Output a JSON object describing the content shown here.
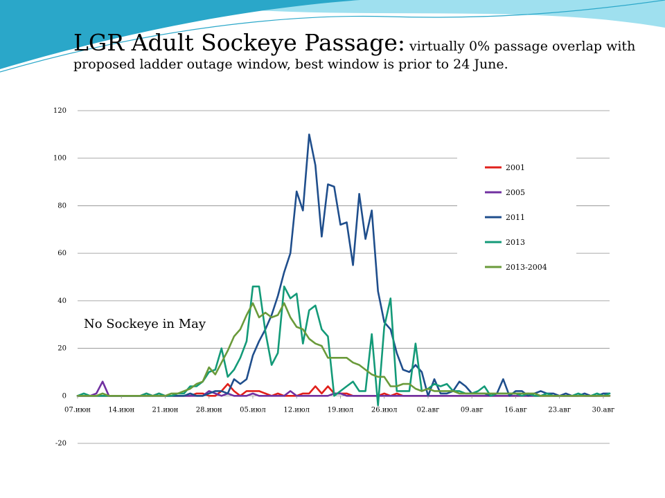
{
  "title": {
    "main": "LGR Adult Sockeye Passage:",
    "sub": " virtually 0% passage overlap with proposed ladder outage window, best window is prior to 24 June."
  },
  "colors": {
    "deco_dark": "#2aa7c9",
    "deco_light": "#9fe0ef",
    "grid": "#8c8c8c"
  },
  "chart_data": {
    "type": "line",
    "xlabel": "",
    "ylabel": "",
    "ylim": [
      -20,
      120
    ],
    "y_ticks": [
      -20,
      0,
      20,
      40,
      60,
      80,
      100,
      120
    ],
    "x_start_index": 0,
    "x_end_index": 85,
    "x_tick_labels": [
      "07.июн",
      "14.июн",
      "21.июн",
      "28.июн",
      "05.июл",
      "12.июл",
      "19.июл",
      "26.июл",
      "02.авг",
      "09.авг",
      "16.авг",
      "23.авг",
      "30.авг"
    ],
    "x_tick_step": 7,
    "grid": true,
    "legend_position": "right",
    "annotation": "No Sockeye in May",
    "series": [
      {
        "name": "2001",
        "color": "#e0201b",
        "points": [
          [
            0,
            0
          ],
          [
            5,
            0
          ],
          [
            10,
            0
          ],
          [
            11,
            1
          ],
          [
            12,
            0
          ],
          [
            13,
            1
          ],
          [
            14,
            0
          ],
          [
            18,
            0
          ],
          [
            19,
            1
          ],
          [
            20,
            1
          ],
          [
            21,
            0
          ],
          [
            22,
            0
          ],
          [
            23,
            2
          ],
          [
            24,
            5
          ],
          [
            25,
            2
          ],
          [
            26,
            0
          ],
          [
            27,
            2
          ],
          [
            28,
            2
          ],
          [
            29,
            2
          ],
          [
            30,
            1
          ],
          [
            31,
            0
          ],
          [
            32,
            1
          ],
          [
            33,
            0
          ],
          [
            34,
            0
          ],
          [
            35,
            0
          ],
          [
            36,
            1
          ],
          [
            37,
            1
          ],
          [
            38,
            4
          ],
          [
            39,
            1
          ],
          [
            40,
            4
          ],
          [
            41,
            1
          ],
          [
            42,
            1
          ],
          [
            43,
            1
          ],
          [
            44,
            0
          ],
          [
            48,
            0
          ],
          [
            49,
            1
          ],
          [
            50,
            0
          ],
          [
            51,
            1
          ],
          [
            52,
            0
          ],
          [
            60,
            0
          ],
          [
            85,
            0
          ]
        ]
      },
      {
        "name": "2005",
        "color": "#7030a0",
        "points": [
          [
            0,
            0
          ],
          [
            2,
            0
          ],
          [
            3,
            1
          ],
          [
            4,
            6
          ],
          [
            5,
            0
          ],
          [
            20,
            0
          ],
          [
            21,
            2
          ],
          [
            22,
            1
          ],
          [
            23,
            0
          ],
          [
            24,
            1
          ],
          [
            25,
            0
          ],
          [
            26,
            0
          ],
          [
            27,
            0
          ],
          [
            28,
            1
          ],
          [
            29,
            0
          ],
          [
            33,
            0
          ],
          [
            34,
            2
          ],
          [
            35,
            0
          ],
          [
            40,
            0
          ],
          [
            41,
            1
          ],
          [
            42,
            1
          ],
          [
            43,
            0
          ],
          [
            85,
            0
          ]
        ]
      },
      {
        "name": "2011",
        "color": "#1f4e8c",
        "points": [
          [
            0,
            0
          ],
          [
            5,
            0
          ],
          [
            10,
            0
          ],
          [
            17,
            0
          ],
          [
            18,
            1
          ],
          [
            19,
            0
          ],
          [
            20,
            0
          ],
          [
            21,
            1
          ],
          [
            22,
            2
          ],
          [
            23,
            2
          ],
          [
            24,
            1
          ],
          [
            25,
            7
          ],
          [
            26,
            5
          ],
          [
            27,
            7
          ],
          [
            28,
            17
          ],
          [
            29,
            23
          ],
          [
            30,
            28
          ],
          [
            31,
            34
          ],
          [
            32,
            42
          ],
          [
            33,
            52
          ],
          [
            34,
            60
          ],
          [
            35,
            86
          ],
          [
            36,
            78
          ],
          [
            37,
            110
          ],
          [
            38,
            97
          ],
          [
            39,
            67
          ],
          [
            40,
            89
          ],
          [
            41,
            88
          ],
          [
            42,
            72
          ],
          [
            43,
            73
          ],
          [
            44,
            55
          ],
          [
            45,
            85
          ],
          [
            46,
            66
          ],
          [
            47,
            78
          ],
          [
            48,
            44
          ],
          [
            49,
            31
          ],
          [
            50,
            28
          ],
          [
            51,
            18
          ],
          [
            52,
            11
          ],
          [
            53,
            10
          ],
          [
            54,
            13
          ],
          [
            55,
            10
          ],
          [
            56,
            0
          ],
          [
            57,
            7
          ],
          [
            58,
            1
          ],
          [
            59,
            1
          ],
          [
            60,
            2
          ],
          [
            61,
            6
          ],
          [
            62,
            4
          ],
          [
            63,
            1
          ],
          [
            64,
            1
          ],
          [
            65,
            1
          ],
          [
            66,
            0
          ],
          [
            67,
            1
          ],
          [
            68,
            7
          ],
          [
            69,
            0
          ],
          [
            70,
            2
          ],
          [
            71,
            2
          ],
          [
            72,
            0
          ],
          [
            73,
            1
          ],
          [
            74,
            2
          ],
          [
            75,
            1
          ],
          [
            76,
            1
          ],
          [
            77,
            0
          ],
          [
            78,
            1
          ],
          [
            79,
            0
          ],
          [
            80,
            0
          ],
          [
            81,
            1
          ],
          [
            82,
            0
          ],
          [
            83,
            0
          ],
          [
            84,
            1
          ],
          [
            85,
            1
          ]
        ]
      },
      {
        "name": "2013",
        "color": "#139a78",
        "points": [
          [
            0,
            0
          ],
          [
            1,
            1
          ],
          [
            2,
            0
          ],
          [
            3,
            0
          ],
          [
            10,
            0
          ],
          [
            11,
            1
          ],
          [
            12,
            0
          ],
          [
            13,
            1
          ],
          [
            14,
            0
          ],
          [
            15,
            0
          ],
          [
            16,
            1
          ],
          [
            17,
            1
          ],
          [
            18,
            4
          ],
          [
            19,
            4
          ],
          [
            20,
            6
          ],
          [
            21,
            10
          ],
          [
            22,
            11
          ],
          [
            23,
            20
          ],
          [
            24,
            8
          ],
          [
            25,
            11
          ],
          [
            26,
            16
          ],
          [
            27,
            23
          ],
          [
            28,
            46
          ],
          [
            29,
            46
          ],
          [
            30,
            27
          ],
          [
            31,
            13
          ],
          [
            32,
            18
          ],
          [
            33,
            46
          ],
          [
            34,
            41
          ],
          [
            35,
            43
          ],
          [
            36,
            22
          ],
          [
            37,
            36
          ],
          [
            38,
            38
          ],
          [
            39,
            28
          ],
          [
            40,
            25
          ],
          [
            41,
            0
          ],
          [
            42,
            2
          ],
          [
            43,
            4
          ],
          [
            44,
            6
          ],
          [
            45,
            2
          ],
          [
            46,
            2
          ],
          [
            47,
            26
          ],
          [
            48,
            -4
          ],
          [
            49,
            29
          ],
          [
            50,
            41
          ],
          [
            51,
            2
          ],
          [
            52,
            2
          ],
          [
            53,
            2
          ],
          [
            54,
            22
          ],
          [
            55,
            2
          ],
          [
            56,
            3
          ],
          [
            57,
            5
          ],
          [
            58,
            4
          ],
          [
            59,
            5
          ],
          [
            60,
            2
          ],
          [
            61,
            2
          ],
          [
            62,
            1
          ],
          [
            63,
            1
          ],
          [
            64,
            2
          ],
          [
            65,
            4
          ],
          [
            66,
            0
          ],
          [
            67,
            1
          ],
          [
            68,
            1
          ],
          [
            69,
            1
          ],
          [
            70,
            1
          ],
          [
            71,
            0
          ],
          [
            72,
            1
          ],
          [
            73,
            0
          ],
          [
            74,
            0
          ],
          [
            75,
            1
          ],
          [
            76,
            0
          ],
          [
            77,
            0
          ],
          [
            78,
            0
          ],
          [
            79,
            0
          ],
          [
            80,
            1
          ],
          [
            81,
            0
          ],
          [
            82,
            0
          ],
          [
            83,
            1
          ],
          [
            84,
            0
          ],
          [
            85,
            1
          ]
        ]
      },
      {
        "name": "2013-2004",
        "color": "#6a9a3a",
        "points": [
          [
            0,
            0
          ],
          [
            3,
            0
          ],
          [
            4,
            1
          ],
          [
            5,
            0
          ],
          [
            10,
            0
          ],
          [
            11,
            0
          ],
          [
            12,
            0
          ],
          [
            13,
            0
          ],
          [
            14,
            0
          ],
          [
            15,
            1
          ],
          [
            16,
            1
          ],
          [
            17,
            2
          ],
          [
            18,
            3
          ],
          [
            19,
            5
          ],
          [
            20,
            6
          ],
          [
            21,
            12
          ],
          [
            22,
            9
          ],
          [
            23,
            14
          ],
          [
            24,
            19
          ],
          [
            25,
            25
          ],
          [
            26,
            28
          ],
          [
            27,
            34
          ],
          [
            28,
            39
          ],
          [
            29,
            33
          ],
          [
            30,
            35
          ],
          [
            31,
            33
          ],
          [
            32,
            34
          ],
          [
            33,
            39
          ],
          [
            34,
            33
          ],
          [
            35,
            29
          ],
          [
            36,
            28
          ],
          [
            37,
            24
          ],
          [
            38,
            22
          ],
          [
            39,
            21
          ],
          [
            40,
            16
          ],
          [
            41,
            16
          ],
          [
            42,
            16
          ],
          [
            43,
            16
          ],
          [
            44,
            14
          ],
          [
            45,
            13
          ],
          [
            46,
            11
          ],
          [
            47,
            9
          ],
          [
            48,
            8
          ],
          [
            49,
            8
          ],
          [
            50,
            4
          ],
          [
            51,
            4
          ],
          [
            52,
            5
          ],
          [
            53,
            5
          ],
          [
            54,
            3
          ],
          [
            55,
            2
          ],
          [
            56,
            3
          ],
          [
            57,
            2
          ],
          [
            58,
            2
          ],
          [
            59,
            2
          ],
          [
            60,
            2
          ],
          [
            61,
            1
          ],
          [
            62,
            1
          ],
          [
            63,
            1
          ],
          [
            64,
            1
          ],
          [
            65,
            1
          ],
          [
            66,
            1
          ],
          [
            67,
            1
          ],
          [
            68,
            1
          ],
          [
            69,
            1
          ],
          [
            70,
            1
          ],
          [
            71,
            1
          ],
          [
            72,
            1
          ],
          [
            73,
            1
          ],
          [
            74,
            0
          ],
          [
            75,
            0
          ],
          [
            76,
            0
          ],
          [
            77,
            0
          ],
          [
            78,
            0
          ],
          [
            79,
            0
          ],
          [
            80,
            0
          ],
          [
            81,
            0
          ],
          [
            82,
            0
          ],
          [
            83,
            0
          ],
          [
            84,
            0
          ],
          [
            85,
            0
          ]
        ]
      }
    ]
  }
}
